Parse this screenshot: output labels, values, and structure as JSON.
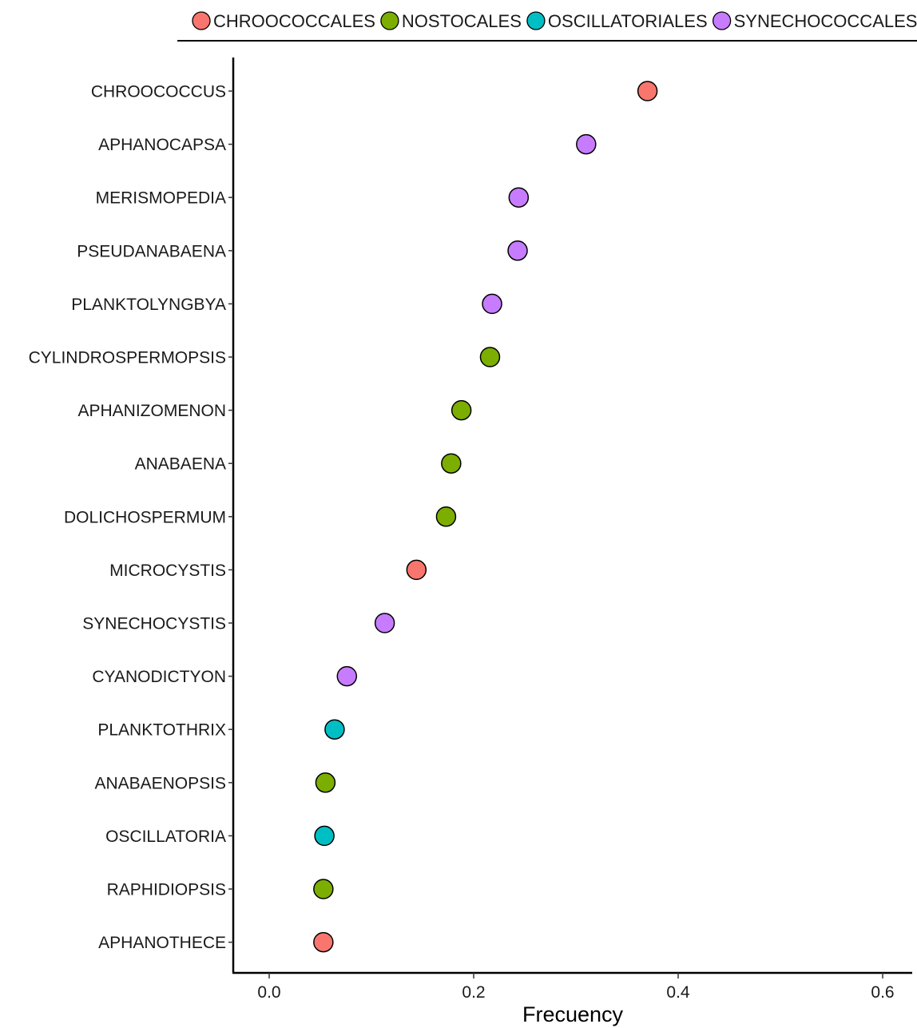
{
  "chart_data": {
    "type": "scatter",
    "title": "",
    "xlabel": "Frecuency",
    "ylabel": "",
    "xlim": [
      -0.025,
      0.625
    ],
    "xticks": [
      0.0,
      0.2,
      0.4,
      0.6
    ],
    "xtick_labels": [
      "0.0",
      "0.2",
      "0.4",
      "0.6"
    ],
    "grid": false,
    "legend_position": "top",
    "categories": [
      "CHROOCOCCUS",
      "APHANOCAPSA",
      "MERISMOPEDIA",
      "PSEUDANABAENA",
      "PLANKTOLYNGBYA",
      "CYLINDROSPERMOPSIS",
      "APHANIZOMENON",
      "ANABAENA",
      "DOLICHOSPERMUM",
      "MICROCYSTIS",
      "SYNECHOCYSTIS",
      "CYANODICTYON",
      "PLANKTOTHRIX",
      "ANABAENOPSIS",
      "OSCILLATORIA",
      "RAPHIDIOPSIS",
      "APHANOTHECE"
    ],
    "values": [
      0.37,
      0.31,
      0.244,
      0.243,
      0.218,
      0.216,
      0.188,
      0.178,
      0.173,
      0.144,
      0.113,
      0.076,
      0.064,
      0.055,
      0.054,
      0.053,
      0.053
    ],
    "groups": [
      "CHROOCOCCALES",
      "SYNECHOCOCCALES",
      "SYNECHOCOCCALES",
      "SYNECHOCOCCALES",
      "SYNECHOCOCCALES",
      "NOSTOCALES",
      "NOSTOCALES",
      "NOSTOCALES",
      "NOSTOCALES",
      "CHROOCOCCALES",
      "SYNECHOCOCCALES",
      "SYNECHOCOCCALES",
      "OSCILLATORIALES",
      "NOSTOCALES",
      "OSCILLATORIALES",
      "NOSTOCALES",
      "CHROOCOCCALES"
    ],
    "legend": [
      {
        "name": "CHROOCOCCALES",
        "color": "#F8766D"
      },
      {
        "name": "NOSTOCALES",
        "color": "#7CAE00"
      },
      {
        "name": "OSCILLATORIALES",
        "color": "#00BFC4"
      },
      {
        "name": "SYNECHOCOCCALES",
        "color": "#C77CFF"
      }
    ]
  }
}
